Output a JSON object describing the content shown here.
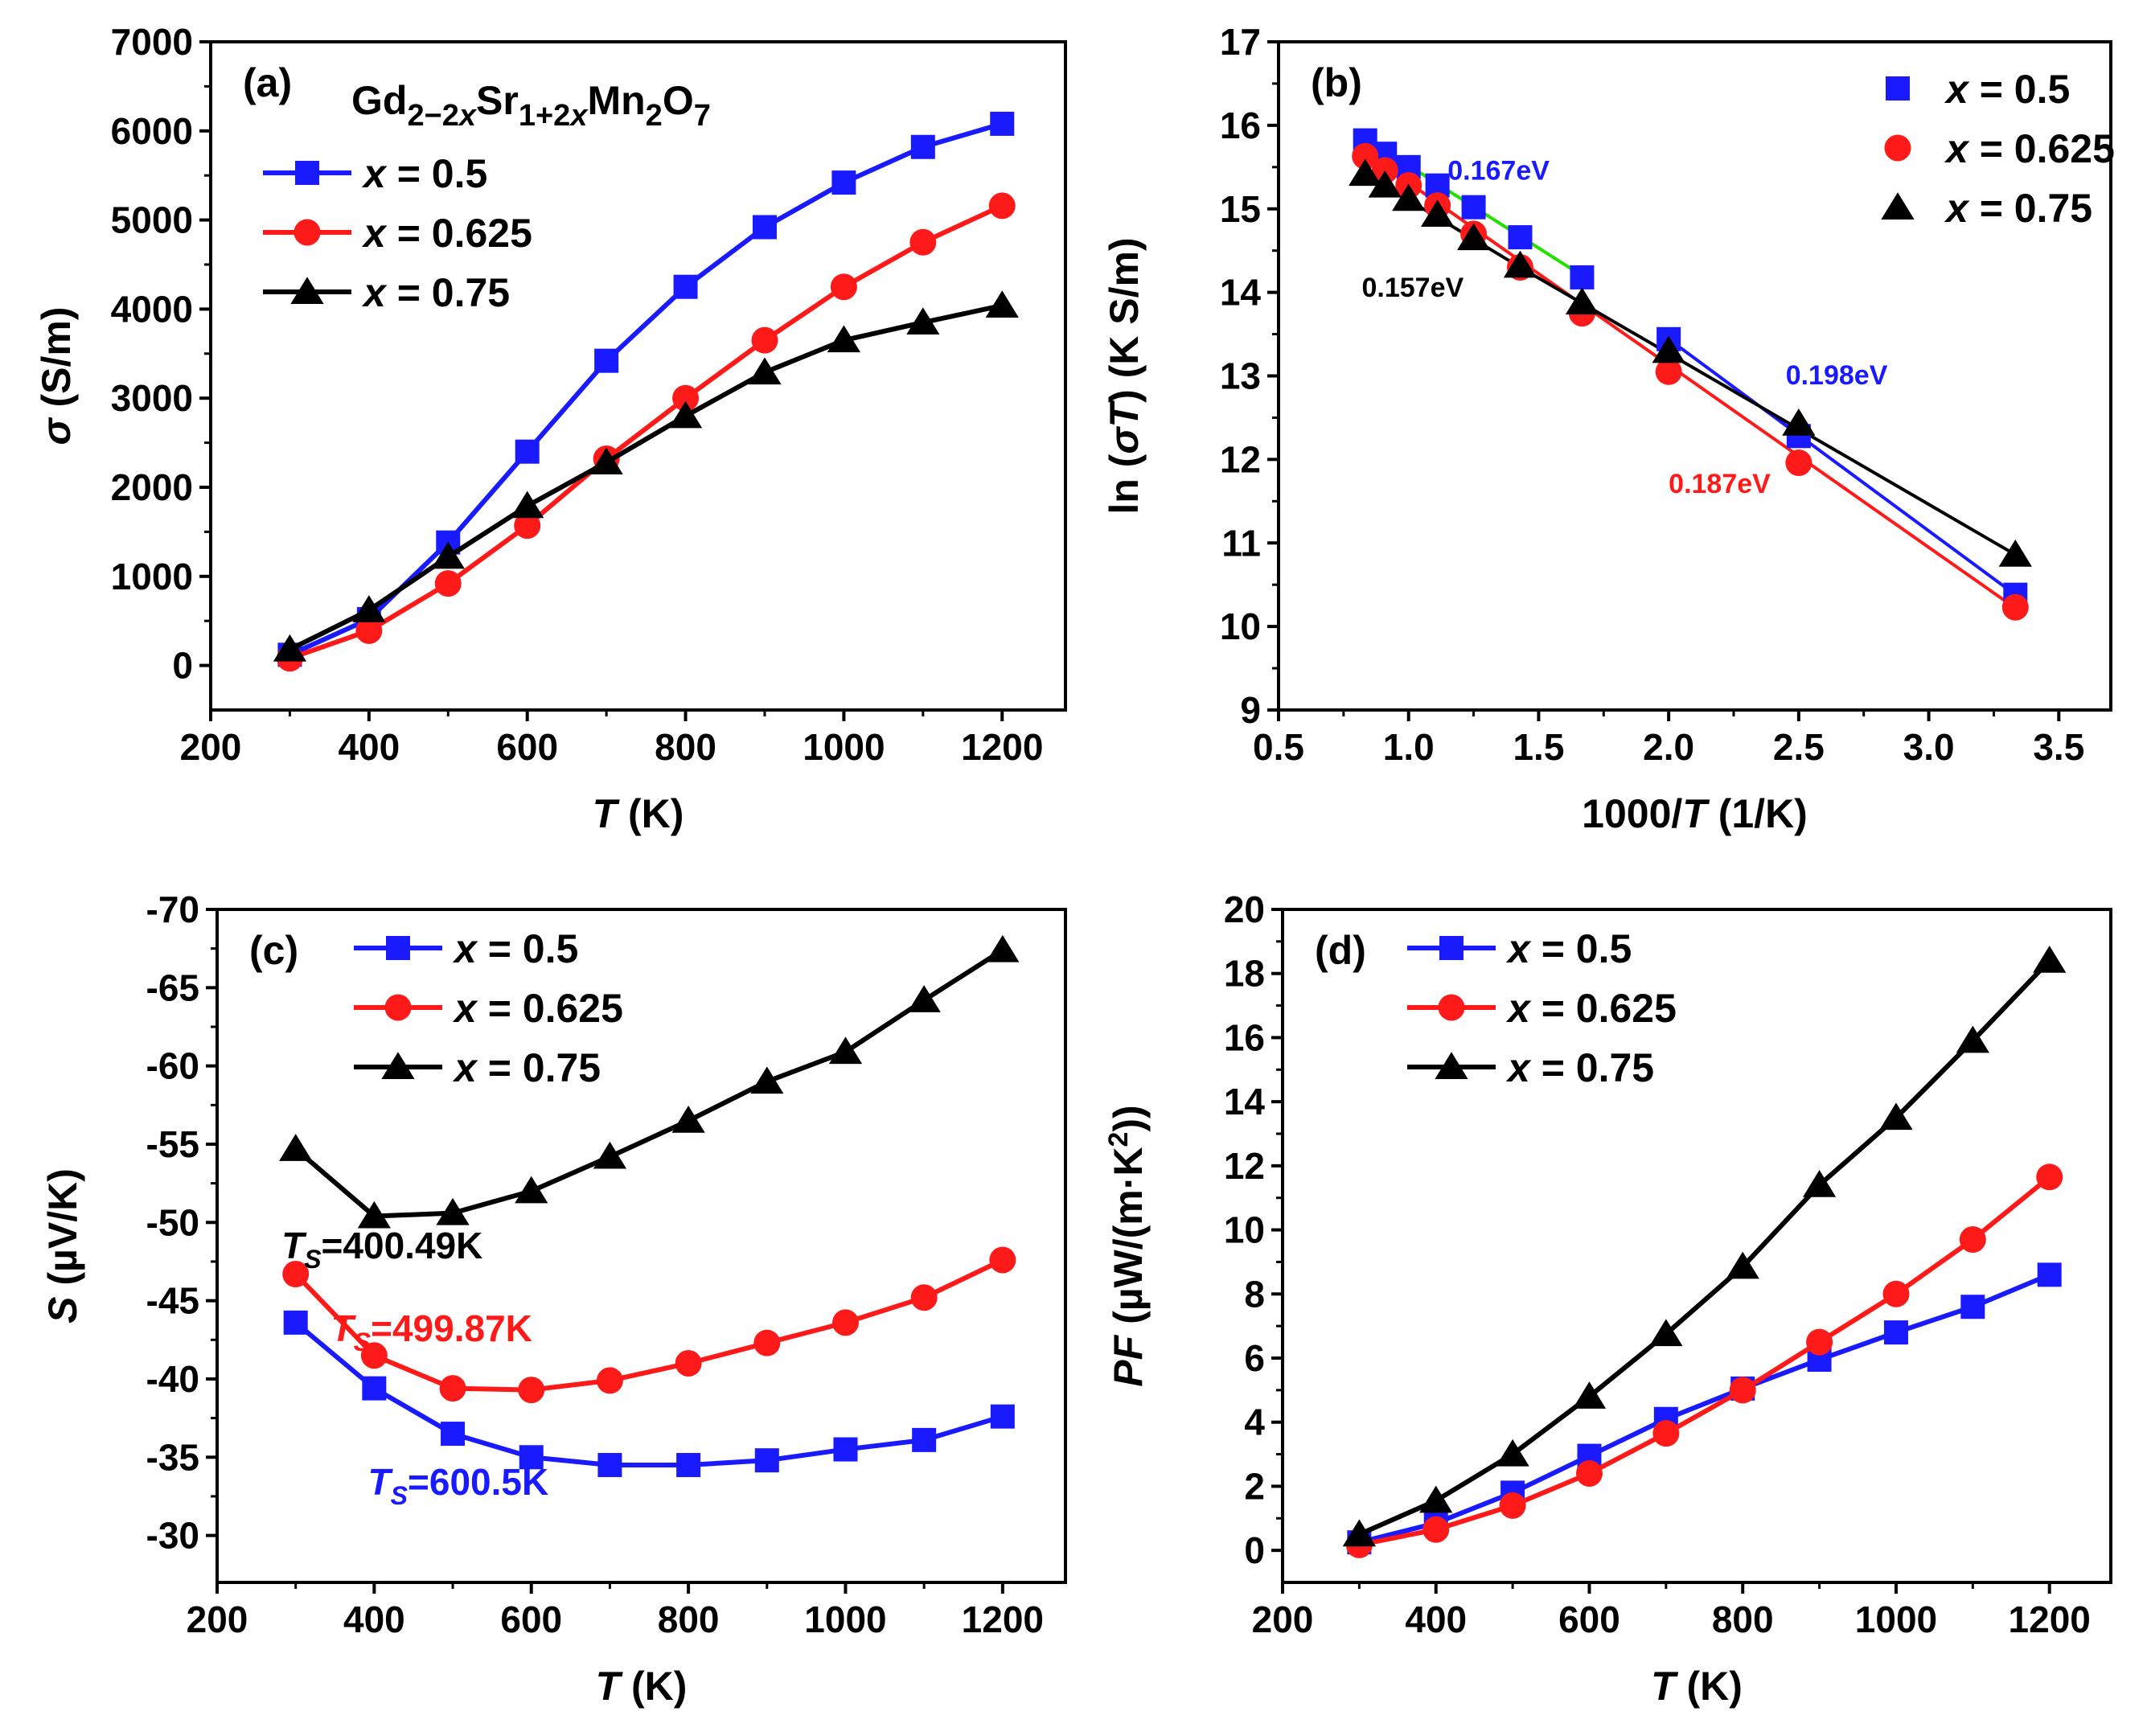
{
  "colors": {
    "s1": "#1a1aff",
    "s2": "#ff1a1a",
    "s3": "#000000",
    "fit_green": "#22e000"
  },
  "chart_data": [
    {
      "type": "line",
      "panel_label": "(a)",
      "title": "Gd2-2xSr1+2xMn2O7",
      "title_parts": {
        "base1": "Gd",
        "sub1": "2−2",
        "subx1": "x",
        "base2": "Sr",
        "sub2": "1+2",
        "subx2": "x",
        "base3": "Mn",
        "sub3": "2",
        "base4": "O",
        "sub4": "7"
      },
      "xlabel": {
        "var": "T",
        "unit": " (K)"
      },
      "ylabel": {
        "var": "σ",
        "unit": " (S/m)"
      },
      "xlim": [
        200,
        1280
      ],
      "ylim": [
        -500,
        7000
      ],
      "xticks": [
        200,
        400,
        600,
        800,
        1000,
        1200
      ],
      "yticks": [
        0,
        1000,
        2000,
        3000,
        4000,
        5000,
        6000,
        7000
      ],
      "legend_position": "top-left",
      "series": [
        {
          "name": "x = 0.5",
          "legend_var": "x",
          "legend_val": " = 0.5",
          "marker": "square",
          "x": [
            300,
            400,
            500,
            600,
            700,
            800,
            900,
            1000,
            1100,
            1200
          ],
          "values": [
            120,
            520,
            1380,
            2400,
            3420,
            4250,
            4920,
            5420,
            5820,
            6080
          ]
        },
        {
          "name": "x = 0.625",
          "legend_var": "x",
          "legend_val": " = 0.625",
          "marker": "circle",
          "x": [
            300,
            400,
            500,
            600,
            700,
            800,
            900,
            1000,
            1100,
            1200
          ],
          "values": [
            80,
            390,
            920,
            1570,
            2320,
            3000,
            3650,
            4250,
            4750,
            5160
          ]
        },
        {
          "name": "x = 0.75",
          "legend_var": "x",
          "legend_val": " = 0.75",
          "marker": "triangle",
          "x": [
            300,
            400,
            500,
            600,
            700,
            800,
            900,
            1000,
            1100,
            1200
          ],
          "values": [
            180,
            620,
            1220,
            1790,
            2280,
            2800,
            3290,
            3650,
            3850,
            4040
          ]
        }
      ]
    },
    {
      "type": "scatter",
      "panel_label": "(b)",
      "xlabel": {
        "pre": "1000/",
        "var": "T",
        "unit": "  (1/K)"
      },
      "ylabel": {
        "pre": "ln (",
        "var": "σT",
        "unit": ") (K S/m)"
      },
      "xlim": [
        0.5,
        3.7
      ],
      "ylim": [
        9,
        17
      ],
      "xticks": [
        0.5,
        1.0,
        1.5,
        2.0,
        2.5,
        3.0,
        3.5
      ],
      "xtick_labels": [
        "0.5",
        "1.0",
        "1.5",
        "2.0",
        "2.5",
        "3.0",
        "3.5"
      ],
      "yticks": [
        9,
        10,
        11,
        12,
        13,
        14,
        15,
        16,
        17
      ],
      "legend_position": "top-right",
      "series": [
        {
          "name": "x = 0.5",
          "legend_var": "x",
          "legend_val": " = 0.5",
          "marker": "square",
          "x": [
            0.833,
            0.909,
            1.0,
            1.111,
            1.25,
            1.429,
            1.667,
            2.0,
            2.5,
            3.333
          ],
          "values": [
            15.82,
            15.66,
            15.5,
            15.28,
            15.02,
            14.66,
            14.18,
            13.44,
            12.28,
            10.38
          ]
        },
        {
          "name": "x = 0.625",
          "legend_var": "x",
          "legend_val": " = 0.625",
          "marker": "circle",
          "x": [
            0.833,
            0.909,
            1.0,
            1.111,
            1.25,
            1.429,
            1.667,
            2.0,
            2.5,
            3.333
          ],
          "values": [
            15.63,
            15.46,
            15.28,
            15.04,
            14.7,
            14.3,
            13.75,
            13.05,
            11.96,
            10.23
          ]
        },
        {
          "name": "x = 0.75",
          "legend_var": "x",
          "legend_val": " = 0.75",
          "marker": "triangle",
          "x": [
            0.833,
            0.909,
            1.0,
            1.111,
            1.25,
            1.429,
            1.667,
            2.0,
            2.5,
            3.333
          ],
          "values": [
            15.42,
            15.28,
            15.12,
            14.93,
            14.65,
            14.32,
            13.88,
            13.3,
            12.43,
            10.86
          ]
        }
      ],
      "fit_lines": [
        {
          "color": "s1",
          "x": [
            2.0,
            3.333
          ],
          "y": [
            13.44,
            10.38
          ]
        },
        {
          "color": "fit_green",
          "x": [
            0.833,
            1.667
          ],
          "y": [
            15.85,
            14.2
          ]
        },
        {
          "color": "s2",
          "x": [
            0.833,
            3.333
          ],
          "y": [
            15.68,
            10.22
          ]
        },
        {
          "color": "s3",
          "x": [
            0.833,
            1.429
          ],
          "y": [
            15.42,
            14.3
          ]
        },
        {
          "color": "s3",
          "x": [
            1.429,
            3.333
          ],
          "y": [
            14.3,
            10.86
          ]
        }
      ],
      "annotations": [
        {
          "text": "0.167eV",
          "color": "s1",
          "x": 1.15,
          "y": 15.35
        },
        {
          "text": "0.157eV",
          "color": "s3",
          "x": 0.82,
          "y": 13.95
        },
        {
          "text": "0.198eV",
          "color": "s1",
          "x": 2.45,
          "y": 12.9
        },
        {
          "text": "0.187eV",
          "color": "s2",
          "x": 2.0,
          "y": 11.6
        }
      ]
    },
    {
      "type": "line",
      "panel_label": "(c)",
      "xlabel": {
        "var": "T",
        "unit": " (K)"
      },
      "ylabel": {
        "var": "S",
        "unit": " (µV/K)"
      },
      "xlim": [
        200,
        1280
      ],
      "ylim": [
        -27,
        -70
      ],
      "xticks": [
        200,
        400,
        600,
        800,
        1000,
        1200
      ],
      "yticks": [
        -30,
        -35,
        -40,
        -45,
        -50,
        -55,
        -60,
        -65,
        -70
      ],
      "legend_position": "top-left",
      "series": [
        {
          "name": "x = 0.5",
          "legend_var": "x",
          "legend_val": " = 0.5",
          "marker": "square",
          "x": [
            300,
            400,
            500,
            600,
            700,
            800,
            900,
            1000,
            1100,
            1200
          ],
          "values": [
            -43.6,
            -39.4,
            -36.5,
            -35.0,
            -34.5,
            -34.5,
            -34.8,
            -35.5,
            -36.1,
            -37.6
          ]
        },
        {
          "name": "x = 0.625",
          "legend_var": "x",
          "legend_val": " = 0.625",
          "marker": "circle",
          "x": [
            300,
            400,
            500,
            600,
            700,
            800,
            900,
            1000,
            1100,
            1200
          ],
          "values": [
            -46.7,
            -41.5,
            -39.4,
            -39.3,
            -39.9,
            -41.0,
            -42.3,
            -43.6,
            -45.2,
            -47.6
          ]
        },
        {
          "name": "x = 0.75",
          "legend_var": "x",
          "legend_val": " = 0.75",
          "marker": "triangle",
          "x": [
            300,
            400,
            500,
            600,
            700,
            800,
            900,
            1000,
            1100,
            1200
          ],
          "values": [
            -54.7,
            -50.4,
            -50.6,
            -52.0,
            -54.2,
            -56.5,
            -59.0,
            -60.9,
            -64.2,
            -67.4
          ]
        }
      ],
      "ts_annotations": [
        {
          "var": "T",
          "sub": "S",
          "val": "=400.49K",
          "color": "s3",
          "x": 282,
          "y": -47.7
        },
        {
          "var": "T",
          "sub": "S",
          "val": "=499.87K",
          "color": "s2",
          "x": 345,
          "y": -42.4
        },
        {
          "var": "T",
          "sub": "S",
          "val": "=600.5K",
          "color": "s1",
          "x": 392,
          "y": -32.6
        }
      ]
    },
    {
      "type": "line",
      "panel_label": "(d)",
      "xlabel": {
        "var": "T",
        "unit": " (K)"
      },
      "ylabel": {
        "var": "PF",
        "unit": " (µW/(m·K",
        "sup": "2",
        "close": "))"
      },
      "xlim": [
        200,
        1280
      ],
      "ylim": [
        -1,
        20
      ],
      "xticks": [
        200,
        400,
        600,
        800,
        1000,
        1200
      ],
      "yticks": [
        0,
        2,
        4,
        6,
        8,
        10,
        12,
        14,
        16,
        18,
        20
      ],
      "legend_position": "top-left",
      "series": [
        {
          "name": "x = 0.5",
          "legend_var": "x",
          "legend_val": " = 0.5",
          "marker": "square",
          "x": [
            300,
            400,
            500,
            600,
            700,
            800,
            900,
            1000,
            1100,
            1200
          ],
          "values": [
            0.25,
            0.85,
            1.8,
            2.95,
            4.1,
            5.05,
            5.95,
            6.8,
            7.6,
            8.6
          ]
        },
        {
          "name": "x = 0.625",
          "legend_var": "x",
          "legend_val": " = 0.625",
          "marker": "circle",
          "x": [
            300,
            400,
            500,
            600,
            700,
            800,
            900,
            1000,
            1100,
            1200
          ],
          "values": [
            0.17,
            0.65,
            1.4,
            2.4,
            3.65,
            5.0,
            6.5,
            8.0,
            9.7,
            11.65
          ]
        },
        {
          "name": "x = 0.75",
          "legend_var": "x",
          "legend_val": " = 0.75",
          "marker": "triangle",
          "x": [
            300,
            400,
            500,
            600,
            700,
            800,
            900,
            1000,
            1100,
            1200
          ],
          "values": [
            0.5,
            1.55,
            3.0,
            4.8,
            6.75,
            8.85,
            11.4,
            13.5,
            15.9,
            18.4
          ]
        }
      ]
    }
  ]
}
